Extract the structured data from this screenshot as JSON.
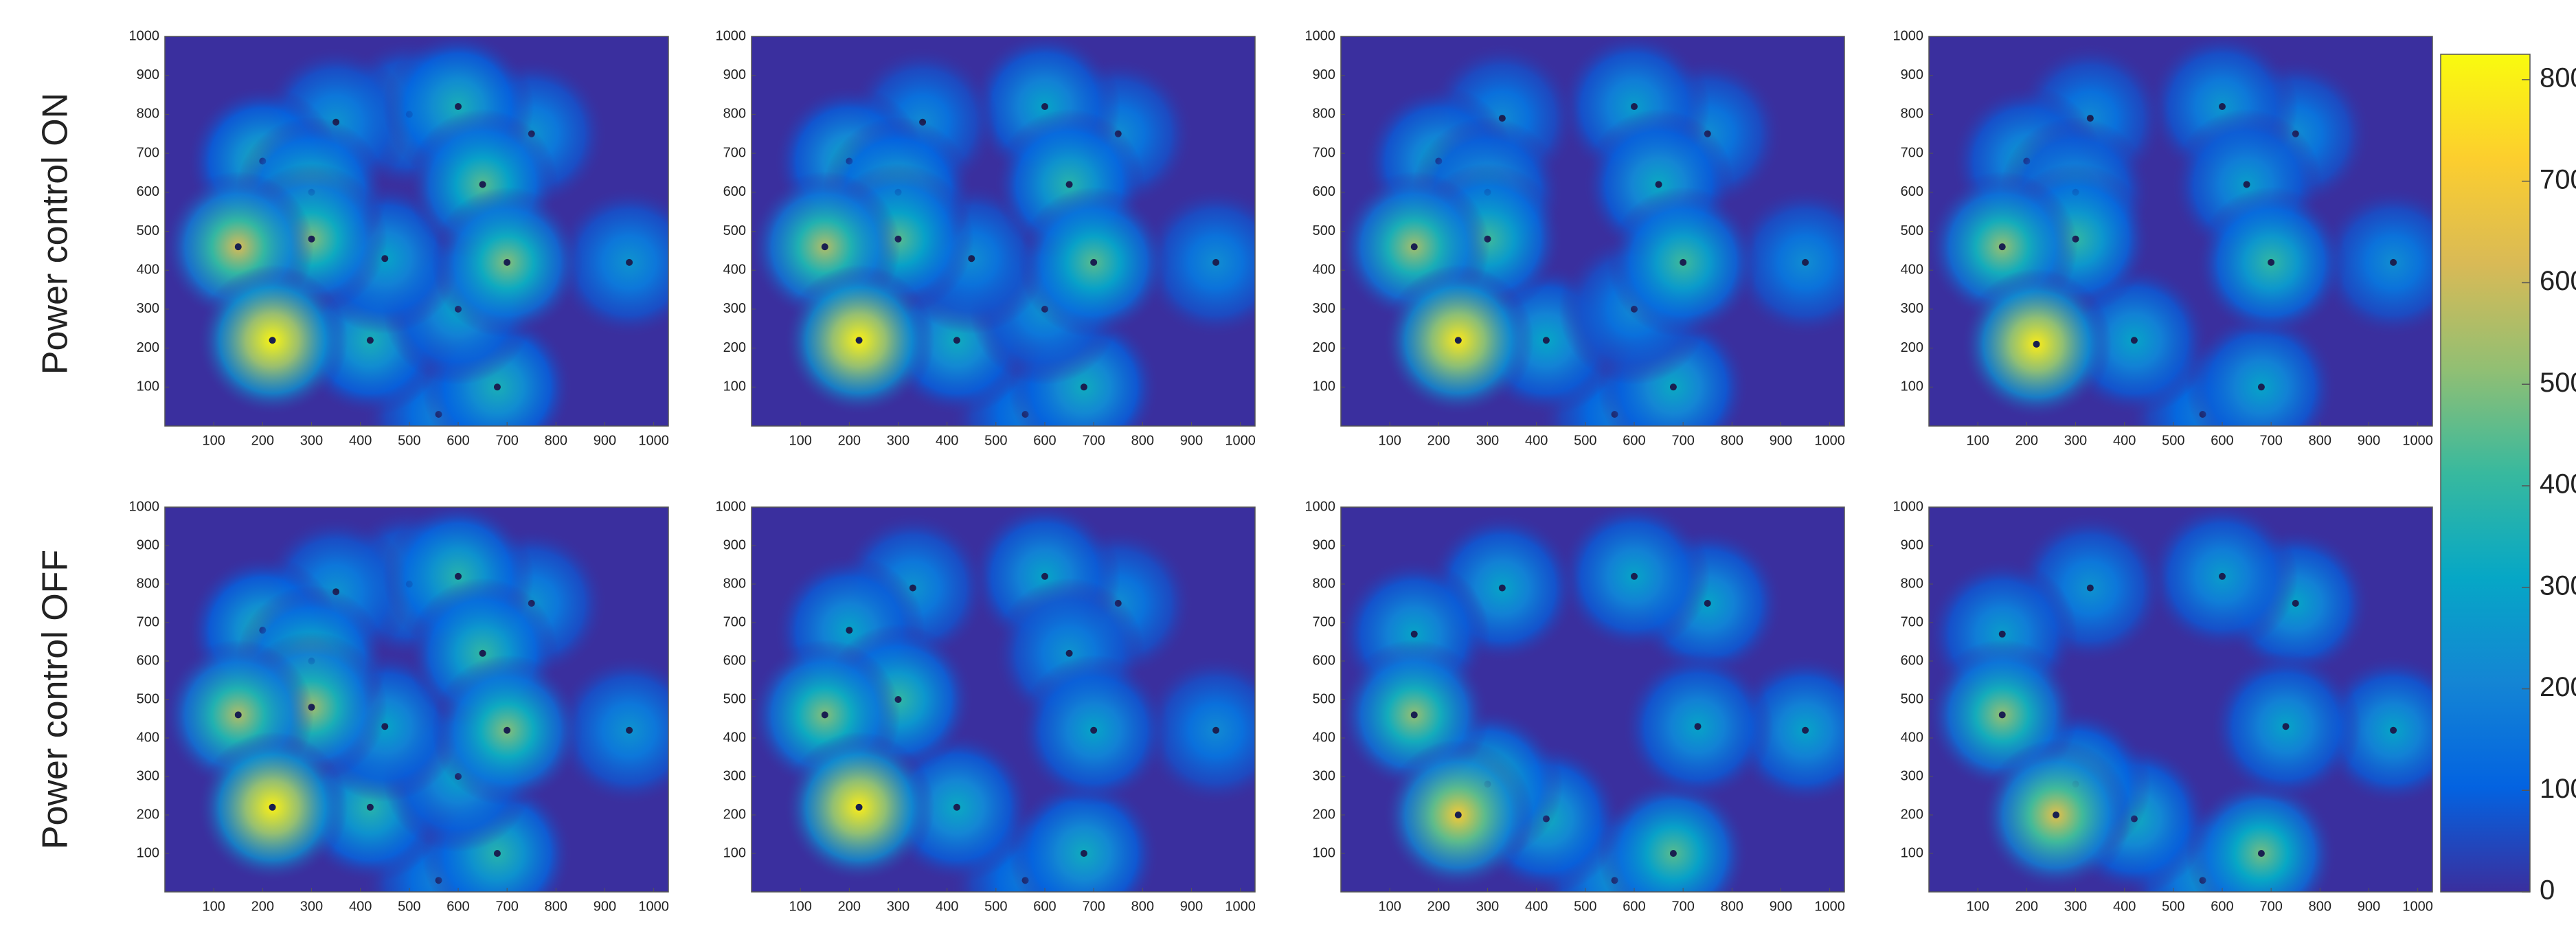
{
  "row_labels": [
    "Power control ON",
    "Power control OFF"
  ],
  "colorbar": {
    "ylim": [
      0,
      825
    ],
    "yticks": [
      0,
      100,
      200,
      300,
      400,
      500,
      600,
      700,
      800
    ],
    "colormap": [
      "#3a2f9e",
      "#0363e1",
      "#1485d4",
      "#06a7c6",
      "#38b99e",
      "#92bf73",
      "#d9ba56",
      "#fcce2e",
      "#f9fb0e"
    ]
  },
  "chart_data": [
    {
      "type": "heatmap",
      "xlim": [
        0,
        1030
      ],
      "ylim": [
        0,
        1000
      ],
      "xticks": [
        100,
        200,
        300,
        400,
        500,
        600,
        700,
        800,
        900,
        1000
      ],
      "yticks": [
        100,
        200,
        300,
        400,
        500,
        600,
        700,
        800,
        900,
        1000
      ],
      "hotspots": [
        [
          560,
          30,
          200
        ],
        [
          950,
          420,
          250
        ],
        [
          750,
          750,
          250
        ],
        [
          500,
          800,
          250
        ],
        [
          350,
          780,
          250
        ],
        [
          200,
          680,
          350
        ],
        [
          600,
          820,
          350
        ],
        [
          420,
          220,
          350
        ],
        [
          680,
          100,
          350
        ],
        [
          600,
          300,
          300
        ],
        [
          450,
          430,
          300
        ],
        [
          300,
          600,
          400
        ],
        [
          650,
          620,
          450
        ],
        [
          700,
          420,
          500
        ],
        [
          300,
          480,
          500
        ],
        [
          150,
          460,
          620
        ],
        [
          220,
          220,
          810
        ]
      ]
    },
    {
      "type": "heatmap",
      "xlim": [
        0,
        1030
      ],
      "ylim": [
        0,
        1000
      ],
      "xticks": [
        100,
        200,
        300,
        400,
        500,
        600,
        700,
        800,
        900,
        1000
      ],
      "yticks": [
        100,
        200,
        300,
        400,
        500,
        600,
        700,
        800,
        900,
        1000
      ],
      "hotspots": [
        [
          560,
          30,
          180
        ],
        [
          950,
          420,
          230
        ],
        [
          750,
          750,
          230
        ],
        [
          600,
          820,
          300
        ],
        [
          350,
          780,
          220
        ],
        [
          200,
          680,
          320
        ],
        [
          420,
          220,
          330
        ],
        [
          680,
          100,
          330
        ],
        [
          600,
          300,
          250
        ],
        [
          450,
          430,
          230
        ],
        [
          300,
          600,
          350
        ],
        [
          650,
          620,
          380
        ],
        [
          700,
          420,
          450
        ],
        [
          300,
          480,
          450
        ],
        [
          150,
          460,
          560
        ],
        [
          220,
          220,
          800
        ]
      ]
    },
    {
      "type": "heatmap",
      "xlim": [
        0,
        1030
      ],
      "ylim": [
        0,
        1000
      ],
      "xticks": [
        100,
        200,
        300,
        400,
        500,
        600,
        700,
        800,
        900,
        1000
      ],
      "yticks": [
        100,
        200,
        300,
        400,
        500,
        600,
        700,
        800,
        900,
        1000
      ],
      "hotspots": [
        [
          560,
          30,
          180
        ],
        [
          950,
          420,
          230
        ],
        [
          750,
          750,
          230
        ],
        [
          600,
          820,
          280
        ],
        [
          330,
          790,
          220
        ],
        [
          200,
          680,
          300
        ],
        [
          420,
          220,
          310
        ],
        [
          680,
          100,
          320
        ],
        [
          600,
          300,
          220
        ],
        [
          300,
          600,
          300
        ],
        [
          650,
          620,
          320
        ],
        [
          700,
          420,
          420
        ],
        [
          300,
          480,
          420
        ],
        [
          150,
          460,
          540
        ],
        [
          240,
          220,
          780
        ]
      ]
    },
    {
      "type": "heatmap",
      "xlim": [
        0,
        1030
      ],
      "ylim": [
        0,
        1000
      ],
      "xticks": [
        100,
        200,
        300,
        400,
        500,
        600,
        700,
        800,
        900,
        1000
      ],
      "yticks": [
        100,
        200,
        300,
        400,
        500,
        600,
        700,
        800,
        900,
        1000
      ],
      "hotspots": [
        [
          560,
          30,
          180
        ],
        [
          950,
          420,
          230
        ],
        [
          750,
          750,
          230
        ],
        [
          600,
          820,
          260
        ],
        [
          330,
          790,
          220
        ],
        [
          200,
          680,
          280
        ],
        [
          420,
          220,
          300
        ],
        [
          680,
          100,
          300
        ],
        [
          300,
          600,
          280
        ],
        [
          650,
          620,
          280
        ],
        [
          700,
          420,
          400
        ],
        [
          300,
          480,
          400
        ],
        [
          150,
          460,
          520
        ],
        [
          220,
          210,
          790
        ]
      ]
    },
    {
      "type": "heatmap",
      "xlim": [
        0,
        1030
      ],
      "ylim": [
        0,
        1000
      ],
      "xticks": [
        100,
        200,
        300,
        400,
        500,
        600,
        700,
        800,
        900,
        1000
      ],
      "yticks": [
        100,
        200,
        300,
        400,
        500,
        600,
        700,
        800,
        900,
        1000
      ],
      "hotspots": [
        [
          560,
          30,
          200
        ],
        [
          950,
          420,
          250
        ],
        [
          750,
          750,
          250
        ],
        [
          500,
          800,
          250
        ],
        [
          350,
          780,
          250
        ],
        [
          200,
          680,
          350
        ],
        [
          600,
          820,
          380
        ],
        [
          420,
          220,
          380
        ],
        [
          680,
          100,
          380
        ],
        [
          600,
          300,
          300
        ],
        [
          450,
          430,
          300
        ],
        [
          300,
          600,
          420
        ],
        [
          650,
          620,
          400
        ],
        [
          700,
          420,
          500
        ],
        [
          300,
          480,
          540
        ],
        [
          150,
          460,
          560
        ],
        [
          220,
          220,
          800
        ]
      ]
    },
    {
      "type": "heatmap",
      "xlim": [
        0,
        1030
      ],
      "ylim": [
        0,
        1000
      ],
      "xticks": [
        100,
        200,
        300,
        400,
        500,
        600,
        700,
        800,
        900,
        1000
      ],
      "yticks": [
        100,
        200,
        300,
        400,
        500,
        600,
        700,
        800,
        900,
        1000
      ],
      "hotspots": [
        [
          560,
          30,
          180
        ],
        [
          950,
          420,
          220
        ],
        [
          750,
          750,
          230
        ],
        [
          600,
          820,
          300
        ],
        [
          330,
          790,
          250
        ],
        [
          200,
          680,
          300
        ],
        [
          420,
          220,
          320
        ],
        [
          680,
          100,
          330
        ],
        [
          650,
          620,
          250
        ],
        [
          700,
          420,
          300
        ],
        [
          300,
          500,
          400
        ],
        [
          150,
          460,
          500
        ],
        [
          220,
          220,
          790
        ]
      ]
    },
    {
      "type": "heatmap",
      "xlim": [
        0,
        1030
      ],
      "ylim": [
        0,
        1000
      ],
      "xticks": [
        100,
        200,
        300,
        400,
        500,
        600,
        700,
        800,
        900,
        1000
      ],
      "yticks": [
        100,
        200,
        300,
        400,
        500,
        600,
        700,
        800,
        900,
        1000
      ],
      "hotspots": [
        [
          560,
          30,
          250
        ],
        [
          950,
          420,
          300
        ],
        [
          750,
          750,
          300
        ],
        [
          600,
          820,
          300
        ],
        [
          330,
          790,
          300
        ],
        [
          150,
          670,
          300
        ],
        [
          420,
          190,
          330
        ],
        [
          680,
          100,
          450
        ],
        [
          730,
          430,
          300
        ],
        [
          300,
          280,
          400
        ],
        [
          150,
          460,
          520
        ],
        [
          240,
          200,
          700
        ]
      ]
    },
    {
      "type": "heatmap",
      "xlim": [
        0,
        1030
      ],
      "ylim": [
        0,
        1000
      ],
      "xticks": [
        100,
        200,
        300,
        400,
        500,
        600,
        700,
        800,
        900,
        1000
      ],
      "yticks": [
        100,
        200,
        300,
        400,
        500,
        600,
        700,
        800,
        900,
        1000
      ],
      "hotspots": [
        [
          560,
          30,
          250
        ],
        [
          950,
          420,
          300
        ],
        [
          750,
          750,
          300
        ],
        [
          600,
          820,
          280
        ],
        [
          330,
          790,
          250
        ],
        [
          150,
          670,
          280
        ],
        [
          420,
          190,
          330
        ],
        [
          680,
          100,
          480
        ],
        [
          730,
          430,
          300
        ],
        [
          300,
          280,
          350
        ],
        [
          150,
          460,
          520
        ],
        [
          260,
          200,
          650
        ]
      ]
    }
  ]
}
